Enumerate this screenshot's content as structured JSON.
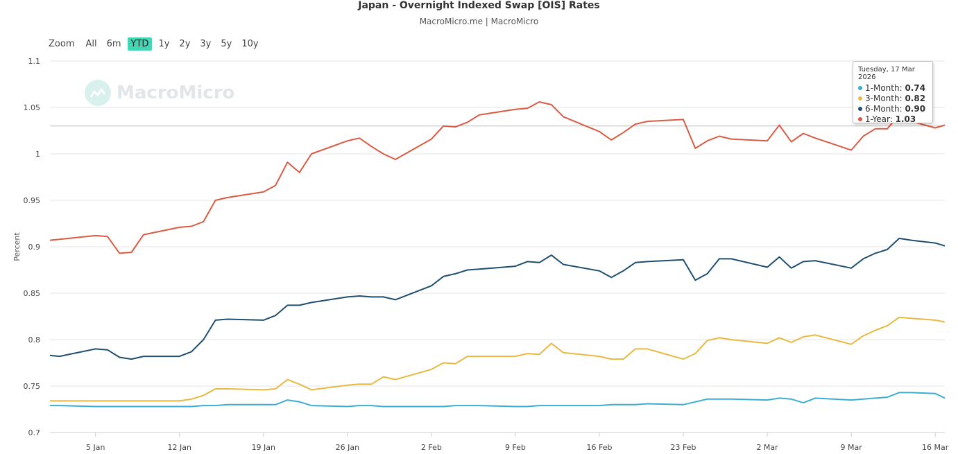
{
  "chart_data": {
    "type": "line",
    "title": "Japan - Overnight Indexed Swap [OIS] Rates",
    "subtitle": "MacroMicro.me | MacroMicro",
    "ylabel": "Percent",
    "xlabel": "",
    "ylim": [
      0.7,
      1.1
    ],
    "yticks": [
      "1.1",
      "1.05",
      "1",
      "0.95",
      "0.9",
      "0.85",
      "0.8",
      "0.75",
      "0.7"
    ],
    "xticks": [
      {
        "label": "5 Jan",
        "day": 5
      },
      {
        "label": "12 Jan",
        "day": 12
      },
      {
        "label": "19 Jan",
        "day": 19
      },
      {
        "label": "26 Jan",
        "day": 26
      },
      {
        "label": "2 Feb",
        "day": 33
      },
      {
        "label": "9 Feb",
        "day": 40
      },
      {
        "label": "16 Feb",
        "day": 47
      },
      {
        "label": "23 Feb",
        "day": 54
      },
      {
        "label": "2 Mar",
        "day": 61
      },
      {
        "label": "9 Mar",
        "day": 68
      },
      {
        "label": "16 Mar",
        "day": 75
      }
    ],
    "xrange": [
      1.2,
      75.8
    ],
    "x": [
      1.2,
      2,
      5,
      6,
      7,
      8,
      9,
      12,
      13,
      14,
      15,
      16,
      19,
      20,
      21,
      22,
      23,
      26,
      27,
      28,
      29,
      30,
      33,
      34,
      35,
      36,
      37,
      40,
      41,
      42,
      43,
      44,
      47,
      48,
      49,
      50,
      51,
      54,
      55,
      56,
      57,
      58,
      61,
      62,
      63,
      64,
      65,
      68,
      69,
      70,
      71,
      72,
      73,
      75,
      75.8
    ],
    "series": [
      {
        "name": "1-Month",
        "color": "#3aaed1",
        "values": [
          0.729,
          0.729,
          0.728,
          0.728,
          0.728,
          0.728,
          0.728,
          0.728,
          0.728,
          0.729,
          0.729,
          0.73,
          0.73,
          0.73,
          0.735,
          0.733,
          0.729,
          0.728,
          0.729,
          0.729,
          0.728,
          0.728,
          0.728,
          0.728,
          0.729,
          0.729,
          0.729,
          0.728,
          0.728,
          0.729,
          0.729,
          0.729,
          0.729,
          0.73,
          0.73,
          0.73,
          0.731,
          0.73,
          0.733,
          0.736,
          0.736,
          0.736,
          0.735,
          0.737,
          0.736,
          0.732,
          0.737,
          0.735,
          0.736,
          0.737,
          0.738,
          0.743,
          0.743,
          0.742,
          0.737
        ]
      },
      {
        "name": "3-Month",
        "color": "#e9b840",
        "values": [
          0.734,
          0.734,
          0.734,
          0.734,
          0.734,
          0.734,
          0.734,
          0.734,
          0.736,
          0.74,
          0.747,
          0.747,
          0.746,
          0.747,
          0.757,
          0.752,
          0.746,
          0.751,
          0.752,
          0.752,
          0.76,
          0.757,
          0.768,
          0.775,
          0.774,
          0.782,
          0.782,
          0.782,
          0.785,
          0.784,
          0.796,
          0.786,
          0.782,
          0.779,
          0.779,
          0.79,
          0.79,
          0.779,
          0.785,
          0.799,
          0.802,
          0.8,
          0.796,
          0.802,
          0.797,
          0.803,
          0.805,
          0.795,
          0.804,
          0.81,
          0.815,
          0.824,
          0.823,
          0.821,
          0.819
        ]
      },
      {
        "name": "6-Month",
        "color": "#1f4e6e",
        "values": [
          0.783,
          0.782,
          0.79,
          0.789,
          0.781,
          0.779,
          0.782,
          0.782,
          0.787,
          0.8,
          0.821,
          0.822,
          0.821,
          0.826,
          0.837,
          0.837,
          0.84,
          0.846,
          0.847,
          0.846,
          0.846,
          0.843,
          0.858,
          0.868,
          0.871,
          0.875,
          0.876,
          0.879,
          0.884,
          0.883,
          0.891,
          0.881,
          0.874,
          0.867,
          0.874,
          0.883,
          0.884,
          0.886,
          0.864,
          0.871,
          0.887,
          0.887,
          0.878,
          0.889,
          0.877,
          0.884,
          0.885,
          0.877,
          0.887,
          0.893,
          0.897,
          0.909,
          0.907,
          0.904,
          0.901
        ]
      },
      {
        "name": "1-Year",
        "color": "#d95b43",
        "values": [
          0.907,
          0.908,
          0.912,
          0.911,
          0.893,
          0.894,
          0.913,
          0.921,
          0.922,
          0.927,
          0.95,
          0.953,
          0.959,
          0.966,
          0.991,
          0.98,
          1.0,
          1.014,
          1.017,
          1.008,
          1.0,
          0.994,
          1.016,
          1.03,
          1.029,
          1.034,
          1.042,
          1.048,
          1.049,
          1.056,
          1.053,
          1.04,
          1.024,
          1.015,
          1.023,
          1.032,
          1.035,
          1.037,
          1.006,
          1.014,
          1.019,
          1.016,
          1.014,
          1.031,
          1.013,
          1.022,
          1.017,
          1.004,
          1.019,
          1.027,
          1.027,
          1.042,
          1.035,
          1.028,
          1.031
        ]
      }
    ],
    "crosshair_value": 1.03,
    "tooltip": {
      "date": "Tuesday, 17 Mar 2026",
      "rows": [
        {
          "label": "1-Month:",
          "value": "0.74",
          "color": "#3aaed1"
        },
        {
          "label": "3-Month:",
          "value": "0.82",
          "color": "#e9b840"
        },
        {
          "label": "6-Month:",
          "value": "0.90",
          "color": "#1f4e6e"
        },
        {
          "label": "1-Year:",
          "value": "1.03",
          "color": "#d95b43"
        }
      ]
    }
  },
  "zoom": {
    "label": "Zoom",
    "buttons": [
      "All",
      "6m",
      "YTD",
      "1y",
      "2y",
      "3y",
      "5y",
      "10y"
    ],
    "active": "YTD"
  },
  "watermark": "MacroMicro"
}
